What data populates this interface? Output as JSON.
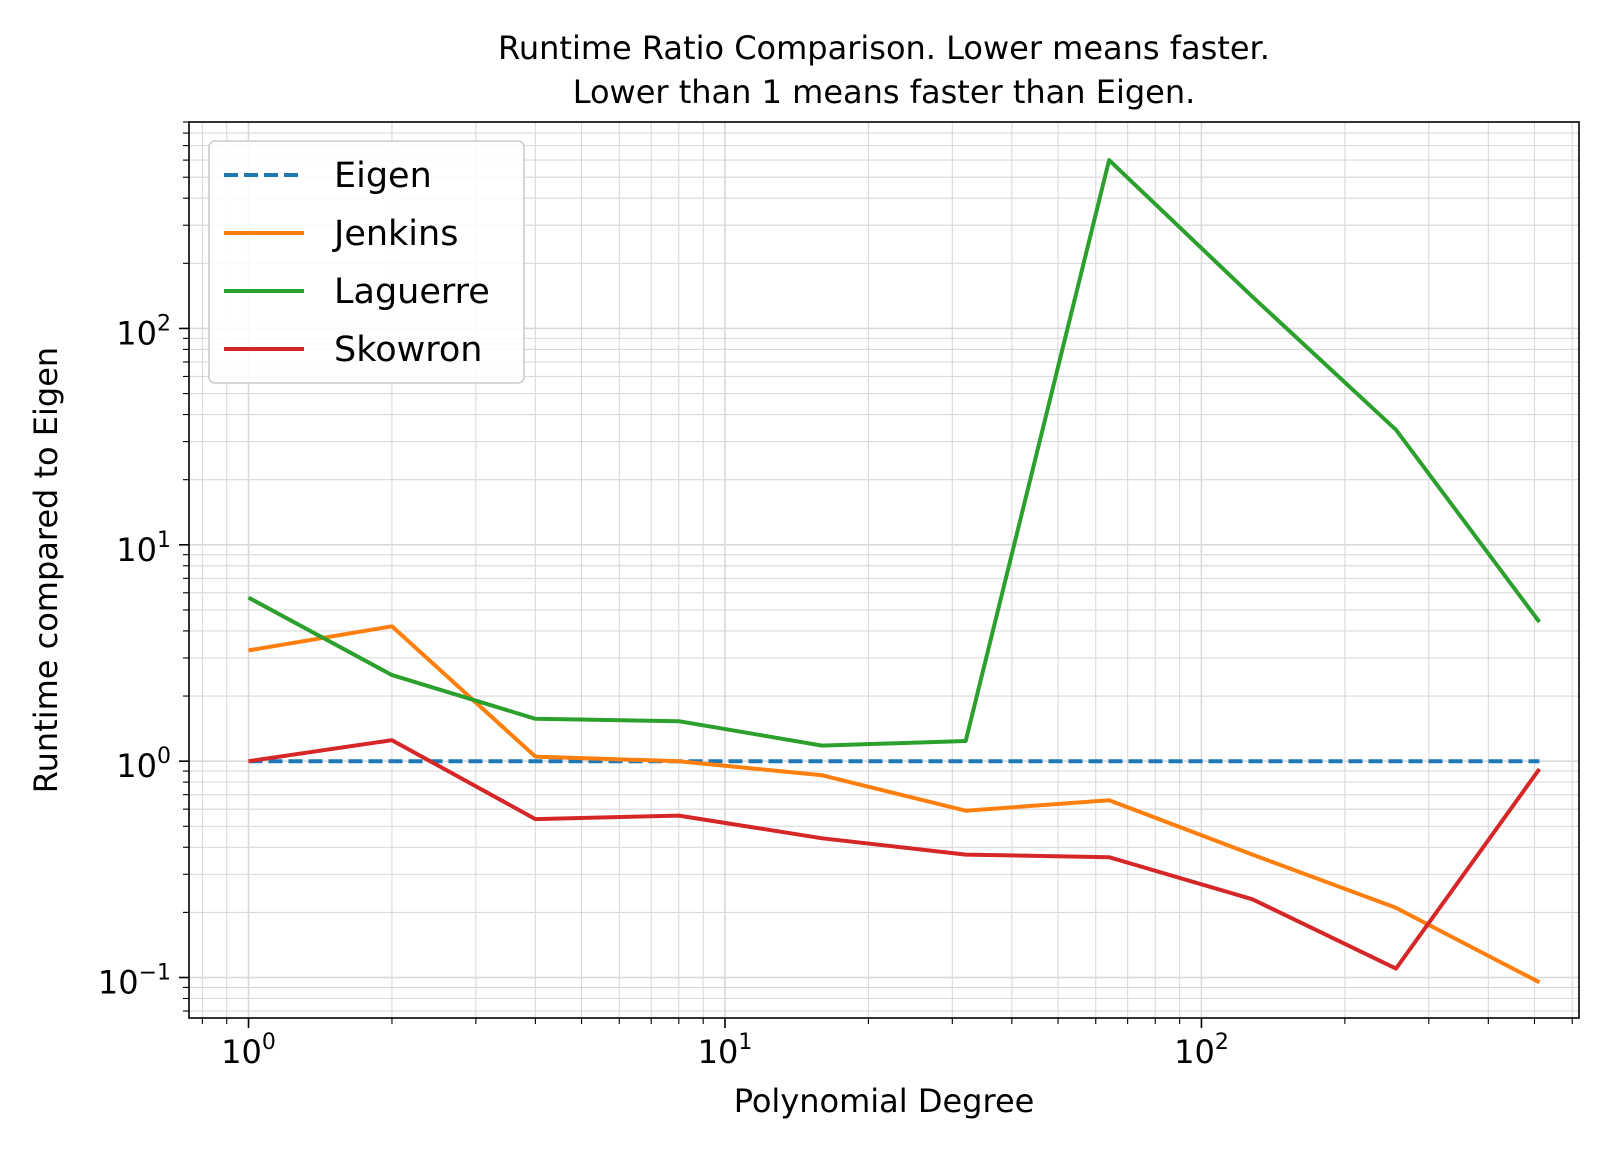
{
  "chart_data": {
    "type": "line",
    "title": [
      "Runtime Ratio Comparison. Lower means faster.",
      "Lower than 1 means faster than Eigen."
    ],
    "xlabel": "Polynomial Degree",
    "ylabel": "Runtime compared to Eigen",
    "xscale": "log",
    "yscale": "log",
    "xlim": [
      0.75,
      620
    ],
    "ylim": [
      0.065,
      900
    ],
    "xticks": [
      {
        "value": 1,
        "base": "10",
        "exp": "0"
      },
      {
        "value": 10,
        "base": "10",
        "exp": "1"
      },
      {
        "value": 100,
        "base": "10",
        "exp": "2"
      }
    ],
    "yticks": [
      {
        "value": 0.1,
        "base": "10",
        "exp": "−1"
      },
      {
        "value": 1,
        "base": "10",
        "exp": "0"
      },
      {
        "value": 10,
        "base": "10",
        "exp": "1"
      },
      {
        "value": 100,
        "base": "10",
        "exp": "2"
      }
    ],
    "grid": true,
    "legend_position": "top-left",
    "x": [
      1,
      2,
      4,
      8,
      16,
      32,
      64,
      128,
      256,
      512
    ],
    "series": [
      {
        "name": "Eigen",
        "color": "#1f77b4",
        "dashed": true,
        "values": [
          1,
          1,
          1,
          1,
          1,
          1,
          1,
          1,
          1,
          1
        ]
      },
      {
        "name": "Jenkins",
        "color": "#ff7f0e",
        "dashed": false,
        "values": [
          3.25,
          4.2,
          1.05,
          1.0,
          0.86,
          0.59,
          0.66,
          0.37,
          0.21,
          0.095
        ]
      },
      {
        "name": "Laguerre",
        "color": "#2ca02c",
        "dashed": false,
        "values": [
          5.7,
          2.5,
          1.57,
          1.53,
          1.18,
          1.24,
          600,
          140,
          34,
          4.4
        ]
      },
      {
        "name": "Skowron",
        "color": "#d62728",
        "dashed": false,
        "values": [
          1.0,
          1.25,
          0.54,
          0.56,
          0.44,
          0.37,
          0.36,
          0.23,
          0.11,
          0.92
        ]
      }
    ]
  }
}
